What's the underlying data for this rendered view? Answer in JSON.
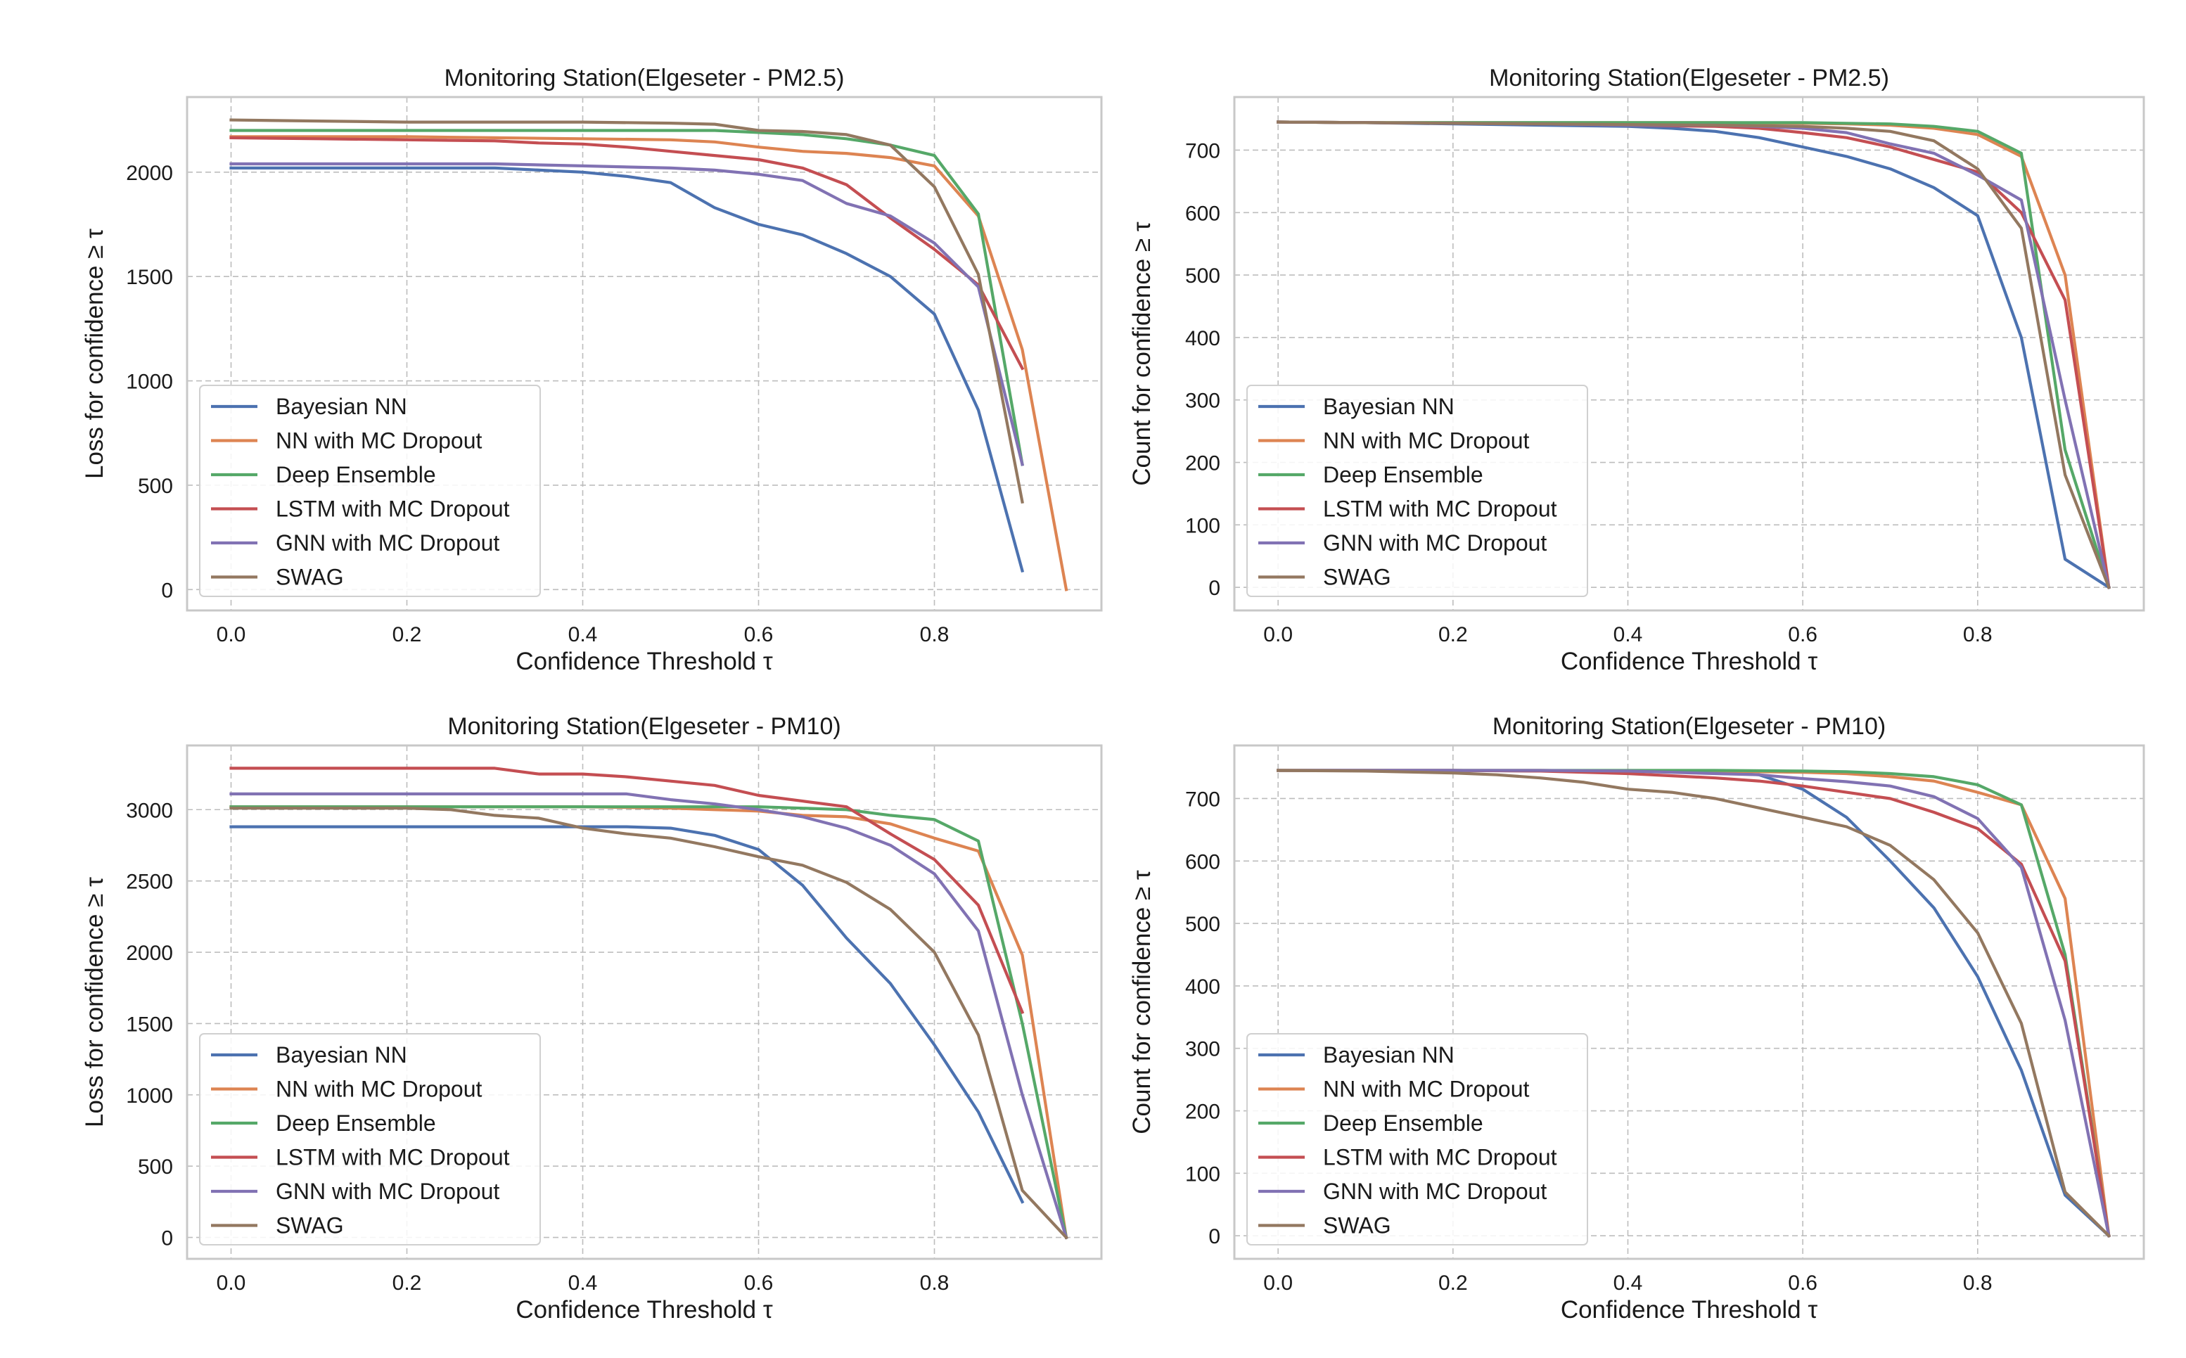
{
  "chart_data": [
    {
      "type": "line",
      "title": "Monitoring Station(Elgeseter - PM2.5)",
      "xlabel": "Confidence Threshold τ",
      "ylabel": "Loss for confidence ≥ τ",
      "xlim": [
        -0.05,
        0.99
      ],
      "ylim": [
        -100,
        2360
      ],
      "xticks": [
        0.0,
        0.2,
        0.4,
        0.6,
        0.8
      ],
      "xtick_labels": [
        "0.0",
        "0.2",
        "0.4",
        "0.6",
        "0.8"
      ],
      "yticks": [
        0,
        500,
        1000,
        1500,
        2000
      ],
      "ytick_labels": [
        "0",
        "500",
        "1000",
        "1500",
        "2000"
      ],
      "grid": true,
      "legend_position": "lower-left",
      "series": [
        {
          "name": "Bayesian NN",
          "color": "#4c72b0",
          "x": [
            0.0,
            0.1,
            0.2,
            0.3,
            0.4,
            0.45,
            0.5,
            0.55,
            0.6,
            0.65,
            0.7,
            0.75,
            0.8,
            0.85,
            0.9
          ],
          "values": [
            2020,
            2020,
            2020,
            2020,
            2000,
            1980,
            1950,
            1830,
            1750,
            1700,
            1610,
            1500,
            1320,
            860,
            90
          ]
        },
        {
          "name": "NN with MC Dropout",
          "color": "#dd8452",
          "x": [
            0.0,
            0.1,
            0.2,
            0.3,
            0.4,
            0.5,
            0.55,
            0.6,
            0.65,
            0.7,
            0.75,
            0.8,
            0.85,
            0.9,
            0.95
          ],
          "values": [
            2170,
            2170,
            2170,
            2165,
            2160,
            2155,
            2145,
            2120,
            2100,
            2090,
            2070,
            2030,
            1790,
            1150,
            0
          ]
        },
        {
          "name": "Deep Ensemble",
          "color": "#55a868",
          "x": [
            0.0,
            0.1,
            0.2,
            0.3,
            0.4,
            0.5,
            0.55,
            0.6,
            0.65,
            0.7,
            0.75,
            0.8,
            0.85,
            0.9
          ],
          "values": [
            2200,
            2200,
            2200,
            2200,
            2200,
            2200,
            2200,
            2190,
            2180,
            2160,
            2130,
            2080,
            1800,
            600
          ]
        },
        {
          "name": "LSTM with MC Dropout",
          "color": "#c44e52",
          "x": [
            0.0,
            0.1,
            0.2,
            0.3,
            0.35,
            0.4,
            0.45,
            0.5,
            0.55,
            0.6,
            0.65,
            0.7,
            0.75,
            0.8,
            0.85,
            0.9
          ],
          "values": [
            2165,
            2160,
            2155,
            2150,
            2140,
            2135,
            2120,
            2100,
            2080,
            2060,
            2020,
            1940,
            1780,
            1630,
            1460,
            1060
          ]
        },
        {
          "name": "GNN with MC Dropout",
          "color": "#8172b3",
          "x": [
            0.0,
            0.1,
            0.2,
            0.3,
            0.4,
            0.5,
            0.55,
            0.6,
            0.65,
            0.7,
            0.75,
            0.8,
            0.85,
            0.9
          ],
          "values": [
            2040,
            2040,
            2040,
            2040,
            2030,
            2020,
            2010,
            1990,
            1960,
            1850,
            1790,
            1660,
            1450,
            600
          ]
        },
        {
          "name": "SWAG",
          "color": "#937860",
          "x": [
            0.0,
            0.1,
            0.2,
            0.3,
            0.4,
            0.5,
            0.55,
            0.6,
            0.65,
            0.7,
            0.75,
            0.8,
            0.85,
            0.9
          ],
          "values": [
            2250,
            2245,
            2240,
            2240,
            2240,
            2235,
            2230,
            2200,
            2195,
            2180,
            2130,
            1930,
            1510,
            420
          ]
        }
      ]
    },
    {
      "type": "line",
      "title": "Monitoring Station(Elgeseter - PM2.5)",
      "xlabel": "Confidence Threshold τ",
      "ylabel": "Count for confidence ≥ τ",
      "xlim": [
        -0.05,
        0.99
      ],
      "ylim": [
        -37,
        785
      ],
      "xticks": [
        0.0,
        0.2,
        0.4,
        0.6,
        0.8
      ],
      "xtick_labels": [
        "0.0",
        "0.2",
        "0.4",
        "0.6",
        "0.8"
      ],
      "yticks": [
        0,
        100,
        200,
        300,
        400,
        500,
        600,
        700
      ],
      "ytick_labels": [
        "0",
        "100",
        "200",
        "300",
        "400",
        "500",
        "600",
        "700"
      ],
      "grid": true,
      "legend_position": "lower-left",
      "series": [
        {
          "name": "Bayesian NN",
          "color": "#4c72b0",
          "x": [
            0.0,
            0.1,
            0.2,
            0.3,
            0.4,
            0.45,
            0.5,
            0.55,
            0.6,
            0.65,
            0.7,
            0.75,
            0.8,
            0.85,
            0.9,
            0.95
          ],
          "values": [
            745,
            744,
            742,
            740,
            738,
            735,
            730,
            720,
            705,
            690,
            670,
            640,
            595,
            400,
            45,
            0
          ]
        },
        {
          "name": "NN with MC Dropout",
          "color": "#dd8452",
          "x": [
            0.0,
            0.1,
            0.2,
            0.3,
            0.4,
            0.5,
            0.6,
            0.65,
            0.7,
            0.75,
            0.8,
            0.85,
            0.9,
            0.95
          ],
          "values": [
            745,
            744,
            744,
            744,
            744,
            744,
            743,
            742,
            740,
            735,
            725,
            690,
            500,
            0
          ]
        },
        {
          "name": "Deep Ensemble",
          "color": "#55a868",
          "x": [
            0.0,
            0.1,
            0.2,
            0.3,
            0.4,
            0.5,
            0.6,
            0.65,
            0.7,
            0.75,
            0.8,
            0.85,
            0.9,
            0.95
          ],
          "values": [
            745,
            744,
            744,
            744,
            744,
            744,
            744,
            743,
            742,
            738,
            730,
            695,
            220,
            0
          ]
        },
        {
          "name": "LSTM with MC Dropout",
          "color": "#c44e52",
          "x": [
            0.0,
            0.1,
            0.2,
            0.3,
            0.4,
            0.5,
            0.55,
            0.6,
            0.65,
            0.7,
            0.75,
            0.8,
            0.85,
            0.9,
            0.95
          ],
          "values": [
            745,
            744,
            743,
            742,
            740,
            738,
            735,
            728,
            720,
            705,
            685,
            665,
            600,
            460,
            0
          ]
        },
        {
          "name": "GNN with MC Dropout",
          "color": "#8172b3",
          "x": [
            0.0,
            0.1,
            0.2,
            0.3,
            0.4,
            0.5,
            0.55,
            0.6,
            0.65,
            0.7,
            0.75,
            0.8,
            0.85,
            0.9,
            0.95
          ],
          "values": [
            745,
            744,
            743,
            742,
            740,
            740,
            738,
            735,
            728,
            710,
            695,
            660,
            620,
            300,
            0
          ]
        },
        {
          "name": "SWAG",
          "color": "#937860",
          "x": [
            0.0,
            0.1,
            0.2,
            0.3,
            0.4,
            0.5,
            0.6,
            0.65,
            0.7,
            0.75,
            0.8,
            0.85,
            0.9,
            0.95
          ],
          "values": [
            745,
            744,
            743,
            742,
            741,
            740,
            738,
            735,
            730,
            715,
            670,
            575,
            180,
            0
          ]
        }
      ]
    },
    {
      "type": "line",
      "title": "Monitoring Station(Elgeseter - PM10)",
      "xlabel": "Confidence Threshold τ",
      "ylabel": "Loss for confidence ≥ τ",
      "xlim": [
        -0.05,
        0.99
      ],
      "ylim": [
        -150,
        3450
      ],
      "xticks": [
        0.0,
        0.2,
        0.4,
        0.6,
        0.8
      ],
      "xtick_labels": [
        "0.0",
        "0.2",
        "0.4",
        "0.6",
        "0.8"
      ],
      "yticks": [
        0,
        500,
        1000,
        1500,
        2000,
        2500,
        3000
      ],
      "ytick_labels": [
        "0",
        "500",
        "1000",
        "1500",
        "2000",
        "2500",
        "3000"
      ],
      "grid": true,
      "legend_position": "lower-left",
      "series": [
        {
          "name": "Bayesian NN",
          "color": "#4c72b0",
          "x": [
            0.0,
            0.1,
            0.2,
            0.3,
            0.4,
            0.45,
            0.5,
            0.55,
            0.6,
            0.65,
            0.7,
            0.75,
            0.8,
            0.85,
            0.9
          ],
          "values": [
            2880,
            2880,
            2880,
            2880,
            2880,
            2880,
            2870,
            2820,
            2720,
            2470,
            2100,
            1780,
            1350,
            880,
            250
          ]
        },
        {
          "name": "NN with MC Dropout",
          "color": "#dd8452",
          "x": [
            0.0,
            0.1,
            0.2,
            0.3,
            0.4,
            0.5,
            0.55,
            0.6,
            0.65,
            0.7,
            0.75,
            0.8,
            0.85,
            0.9,
            0.95
          ],
          "values": [
            3020,
            3020,
            3020,
            3020,
            3020,
            3010,
            3000,
            2990,
            2960,
            2950,
            2900,
            2800,
            2710,
            1980,
            0
          ]
        },
        {
          "name": "Deep Ensemble",
          "color": "#55a868",
          "x": [
            0.0,
            0.1,
            0.2,
            0.3,
            0.4,
            0.5,
            0.55,
            0.6,
            0.65,
            0.7,
            0.75,
            0.8,
            0.85,
            0.9,
            0.95
          ],
          "values": [
            3020,
            3020,
            3020,
            3020,
            3020,
            3020,
            3020,
            3020,
            3010,
            3000,
            2960,
            2930,
            2780,
            1500,
            0
          ]
        },
        {
          "name": "LSTM with MC Dropout",
          "color": "#c44e52",
          "x": [
            0.0,
            0.1,
            0.2,
            0.3,
            0.35,
            0.4,
            0.45,
            0.5,
            0.55,
            0.6,
            0.65,
            0.7,
            0.75,
            0.8,
            0.85,
            0.9
          ],
          "values": [
            3290,
            3290,
            3290,
            3290,
            3250,
            3250,
            3230,
            3200,
            3170,
            3100,
            3060,
            3020,
            2830,
            2650,
            2330,
            1580
          ]
        },
        {
          "name": "GNN with MC Dropout",
          "color": "#8172b3",
          "x": [
            0.0,
            0.1,
            0.2,
            0.3,
            0.4,
            0.45,
            0.5,
            0.55,
            0.6,
            0.65,
            0.7,
            0.75,
            0.8,
            0.85,
            0.9,
            0.95
          ],
          "values": [
            3110,
            3110,
            3110,
            3110,
            3110,
            3110,
            3070,
            3040,
            3000,
            2950,
            2870,
            2750,
            2550,
            2150,
            1000,
            0
          ]
        },
        {
          "name": "SWAG",
          "color": "#937860",
          "x": [
            0.0,
            0.1,
            0.2,
            0.25,
            0.3,
            0.35,
            0.4,
            0.45,
            0.5,
            0.55,
            0.6,
            0.65,
            0.7,
            0.75,
            0.8,
            0.85,
            0.9,
            0.95
          ],
          "values": [
            3010,
            3010,
            3010,
            3000,
            2960,
            2940,
            2870,
            2830,
            2800,
            2740,
            2670,
            2610,
            2490,
            2300,
            2000,
            1420,
            330,
            0
          ]
        }
      ]
    },
    {
      "type": "line",
      "title": "Monitoring Station(Elgeseter - PM10)",
      "xlabel": "Confidence Threshold τ",
      "ylabel": "Count for confidence ≥ τ",
      "xlim": [
        -0.05,
        0.99
      ],
      "ylim": [
        -37,
        785
      ],
      "xticks": [
        0.0,
        0.2,
        0.4,
        0.6,
        0.8
      ],
      "xtick_labels": [
        "0.0",
        "0.2",
        "0.4",
        "0.6",
        "0.8"
      ],
      "yticks": [
        0,
        100,
        200,
        300,
        400,
        500,
        600,
        700
      ],
      "ytick_labels": [
        "0",
        "100",
        "200",
        "300",
        "400",
        "500",
        "600",
        "700"
      ],
      "grid": true,
      "legend_position": "lower-left",
      "series": [
        {
          "name": "Bayesian NN",
          "color": "#4c72b0",
          "x": [
            0.0,
            0.1,
            0.2,
            0.3,
            0.4,
            0.5,
            0.55,
            0.6,
            0.65,
            0.7,
            0.75,
            0.8,
            0.85,
            0.9,
            0.95
          ],
          "values": [
            745,
            745,
            745,
            744,
            744,
            742,
            738,
            715,
            670,
            600,
            525,
            415,
            265,
            65,
            0
          ]
        },
        {
          "name": "NN with MC Dropout",
          "color": "#dd8452",
          "x": [
            0.0,
            0.1,
            0.2,
            0.3,
            0.4,
            0.5,
            0.6,
            0.65,
            0.7,
            0.75,
            0.8,
            0.85,
            0.9,
            0.95
          ],
          "values": [
            745,
            745,
            745,
            745,
            744,
            744,
            742,
            740,
            735,
            728,
            710,
            690,
            540,
            0
          ]
        },
        {
          "name": "Deep Ensemble",
          "color": "#55a868",
          "x": [
            0.0,
            0.1,
            0.2,
            0.3,
            0.4,
            0.5,
            0.6,
            0.65,
            0.7,
            0.75,
            0.8,
            0.85,
            0.9,
            0.95
          ],
          "values": [
            745,
            745,
            745,
            745,
            745,
            745,
            744,
            743,
            740,
            735,
            722,
            690,
            450,
            0
          ]
        },
        {
          "name": "LSTM with MC Dropout",
          "color": "#c44e52",
          "x": [
            0.0,
            0.1,
            0.2,
            0.3,
            0.4,
            0.5,
            0.55,
            0.6,
            0.65,
            0.7,
            0.75,
            0.8,
            0.85,
            0.9,
            0.95
          ],
          "values": [
            745,
            745,
            745,
            744,
            740,
            733,
            728,
            720,
            710,
            700,
            678,
            652,
            595,
            440,
            0
          ]
        },
        {
          "name": "GNN with MC Dropout",
          "color": "#8172b3",
          "x": [
            0.0,
            0.1,
            0.2,
            0.3,
            0.4,
            0.5,
            0.55,
            0.6,
            0.65,
            0.7,
            0.75,
            0.8,
            0.85,
            0.9,
            0.95
          ],
          "values": [
            745,
            745,
            745,
            745,
            744,
            740,
            738,
            732,
            727,
            720,
            703,
            668,
            590,
            345,
            0
          ]
        },
        {
          "name": "SWAG",
          "color": "#937860",
          "x": [
            0.0,
            0.1,
            0.2,
            0.25,
            0.3,
            0.35,
            0.4,
            0.45,
            0.5,
            0.55,
            0.6,
            0.65,
            0.7,
            0.75,
            0.8,
            0.85,
            0.9,
            0.95
          ],
          "values": [
            745,
            744,
            741,
            738,
            733,
            726,
            715,
            710,
            700,
            685,
            670,
            655,
            625,
            570,
            485,
            340,
            70,
            0
          ]
        }
      ]
    }
  ]
}
